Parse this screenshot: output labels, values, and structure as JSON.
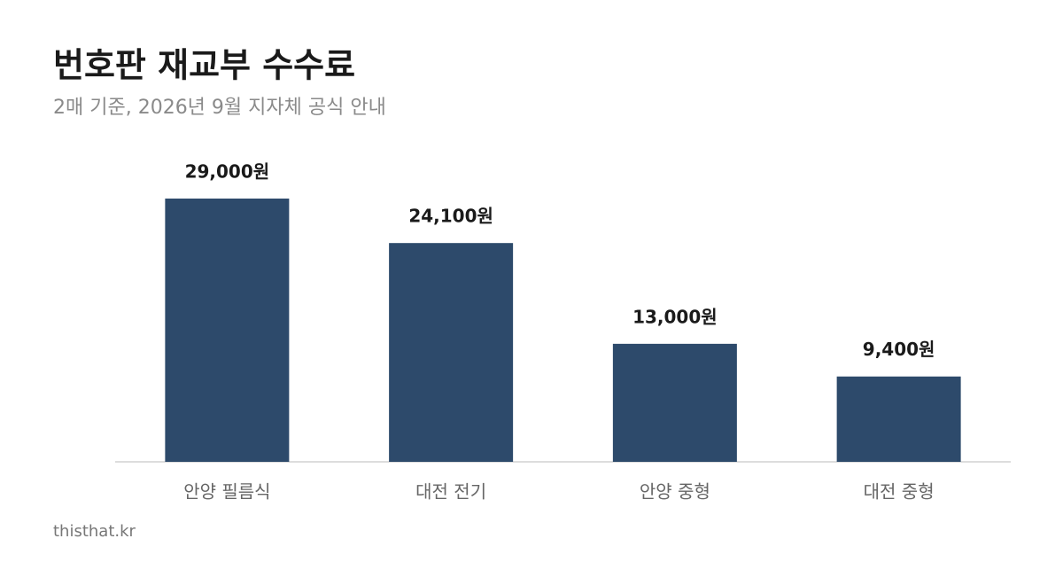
{
  "chart_data": {
    "type": "bar",
    "title": "번호판 재교부 수수료",
    "subtitle": "2매 기준, 2026년 9월 지자체 공식 안내",
    "categories": [
      "안양 필름식",
      "대전 전기",
      "안양 중형",
      "대전 중형"
    ],
    "values": [
      29000,
      24100,
      13000,
      9400
    ],
    "value_labels": [
      "29,000원",
      "24,100원",
      "13,000원",
      "9,400원"
    ],
    "color": "#2d4a6b"
  },
  "footer": "thisthat.kr"
}
